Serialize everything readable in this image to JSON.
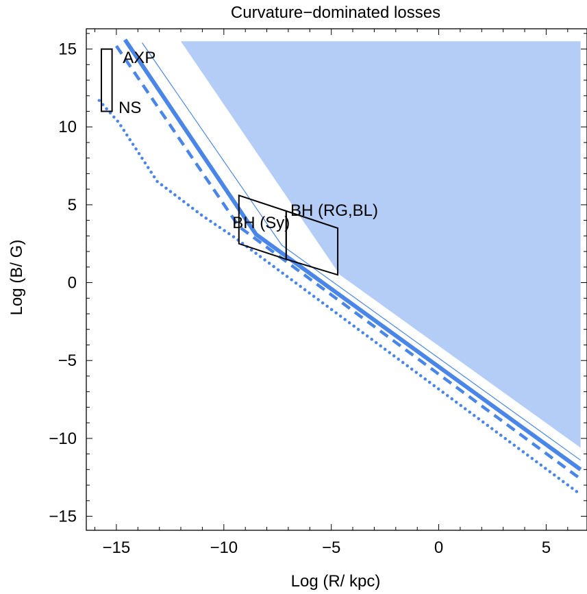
{
  "chart_data": {
    "type": "line",
    "title": "Curvature−dominated   losses",
    "xlabel": "Log (R/ kpc)",
    "ylabel": "Log (B/ G)",
    "xlim": [
      -16.4,
      6.9
    ],
    "ylim": [
      -15.9,
      16.3
    ],
    "xticks": [
      -15,
      -10,
      -5,
      0,
      5
    ],
    "yticks": [
      -15,
      -10,
      -5,
      0,
      5,
      10,
      15
    ],
    "xtick_labels": [
      "−15",
      "−10",
      "−5",
      "0",
      "5"
    ],
    "ytick_labels": [
      "−15",
      "−10",
      "−5",
      "0",
      "5",
      "10",
      "15"
    ],
    "grid": false,
    "colors": {
      "series": "#4a86e8",
      "region": "#b3cdf7",
      "box": "#000000"
    },
    "region": {
      "name": "allowed-region",
      "points": [
        [
          -12.0,
          15.5
        ],
        [
          6.6,
          15.5
        ],
        [
          6.6,
          -10.6
        ],
        [
          -4.6,
          0.5
        ]
      ]
    },
    "series": [
      {
        "style": "thick-solid",
        "x": [
          -14.6,
          -8.5,
          6.6
        ],
        "y": [
          15.6,
          3.1,
          -12.0
        ]
      },
      {
        "style": "thin-solid",
        "x": [
          -13.8,
          -7.3,
          6.6
        ],
        "y": [
          15.4,
          2.4,
          -11.4
        ]
      },
      {
        "style": "dashed",
        "x": [
          -15.0,
          -9.3,
          6.6
        ],
        "y": [
          15.2,
          3.6,
          -12.6
        ]
      },
      {
        "style": "dotted",
        "x": [
          -15.8,
          -14.9,
          -13.1,
          -11.0,
          -9.5,
          6.6
        ],
        "y": [
          11.7,
          10.3,
          6.5,
          4.3,
          2.9,
          -13.6
        ]
      }
    ],
    "annotations": [
      {
        "label": "AXP",
        "x": -14.7,
        "y": 14.1
      },
      {
        "label": "NS",
        "x": -14.9,
        "y": 10.9
      },
      {
        "label": "BH (Sy)",
        "x": -9.6,
        "y": 3.5
      },
      {
        "label": "BH (RG,BL)",
        "x": -6.9,
        "y": 4.3
      }
    ],
    "boxes": [
      {
        "name": "axp-ns-box",
        "points": [
          [
            -15.7,
            11.0
          ],
          [
            -15.2,
            11.0
          ],
          [
            -15.2,
            15.0
          ],
          [
            -15.7,
            15.0
          ]
        ]
      },
      {
        "name": "bh-sy-box",
        "points": [
          [
            -9.3,
            5.6
          ],
          [
            -7.1,
            4.6
          ],
          [
            -7.1,
            1.5
          ],
          [
            -9.3,
            2.5
          ]
        ]
      },
      {
        "name": "bh-rg-bl-box",
        "points": [
          [
            -7.1,
            4.6
          ],
          [
            -4.7,
            3.5
          ],
          [
            -4.7,
            0.5
          ],
          [
            -7.1,
            1.5
          ]
        ]
      }
    ]
  }
}
